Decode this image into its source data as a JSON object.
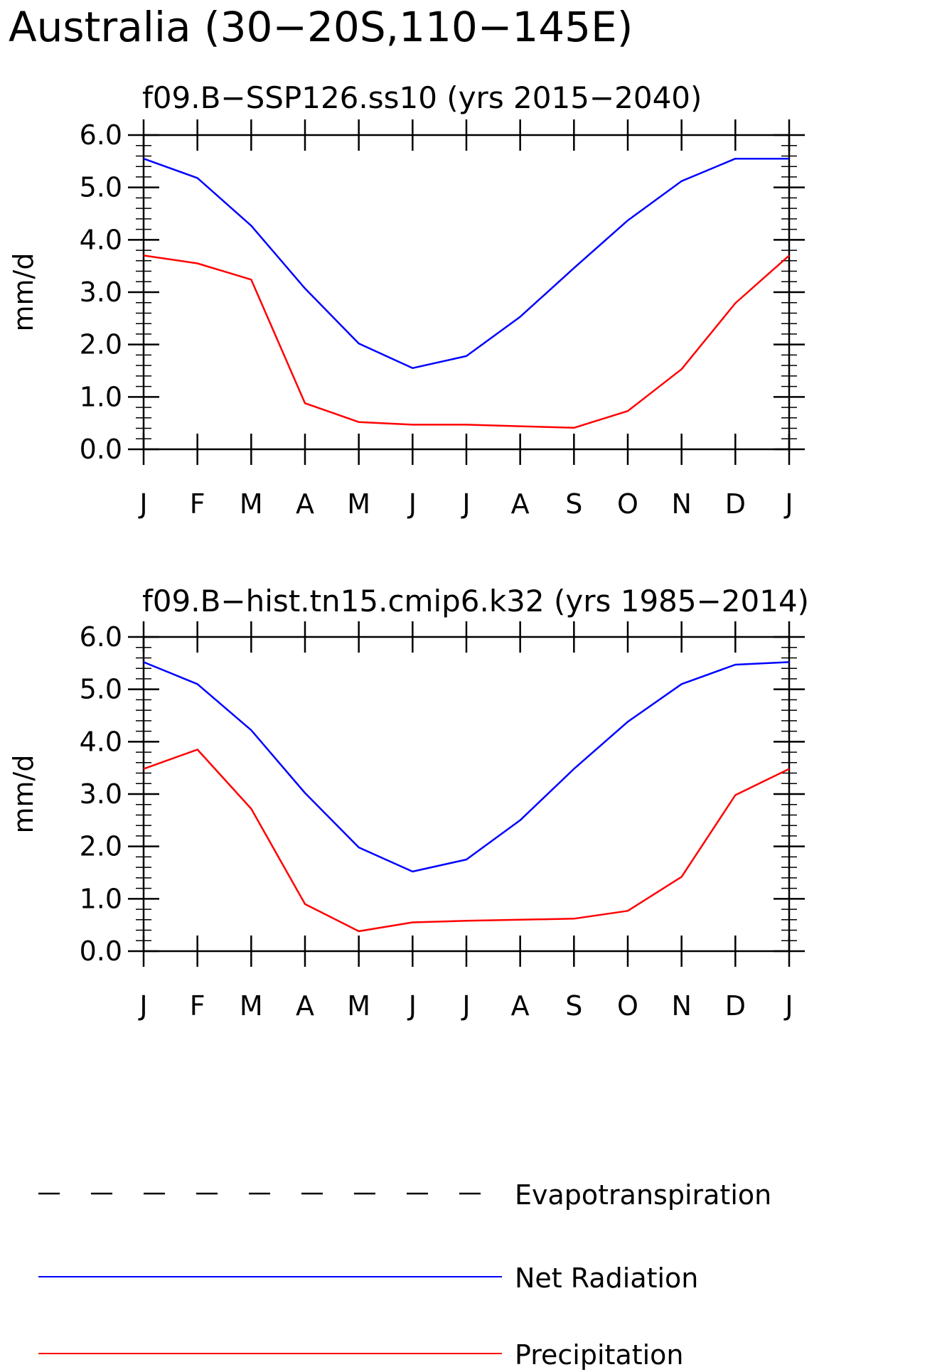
{
  "title": "Australia (30−20S,110−145E)",
  "legend": {
    "position": "bottom",
    "items": [
      {
        "label": "Evapotranspiration",
        "color": "#000000",
        "style": "dashed"
      },
      {
        "label": "Net Radiation",
        "color": "#0000ff",
        "style": "solid"
      },
      {
        "label": "Precipitation",
        "color": "#ff0000",
        "style": "solid"
      }
    ]
  },
  "chart_data": [
    {
      "type": "line",
      "title": "f09.B−SSP126.ss10 (yrs 2015−2040)",
      "xlabel": "",
      "ylabel": "mm/d",
      "categories": [
        "J",
        "F",
        "M",
        "A",
        "M",
        "J",
        "J",
        "A",
        "S",
        "O",
        "N",
        "D",
        "J"
      ],
      "ylim": [
        0,
        6
      ],
      "yticks": [
        "0.0",
        "1.0",
        "2.0",
        "3.0",
        "4.0",
        "5.0",
        "6.0"
      ],
      "grid": false,
      "series": [
        {
          "name": "Net Radiation",
          "color": "#0000ff",
          "values": [
            5.55,
            5.18,
            4.27,
            3.07,
            2.02,
            1.55,
            1.78,
            2.53,
            3.46,
            4.37,
            5.12,
            5.55,
            5.55
          ]
        },
        {
          "name": "Precipitation",
          "color": "#ff0000",
          "values": [
            3.7,
            3.55,
            3.24,
            0.88,
            0.52,
            0.47,
            0.47,
            0.44,
            0.41,
            0.73,
            1.53,
            2.79,
            3.7
          ]
        }
      ]
    },
    {
      "type": "line",
      "title": "f09.B−hist.tn15.cmip6.k32 (yrs 1985−2014)",
      "xlabel": "",
      "ylabel": "mm/d",
      "categories": [
        "J",
        "F",
        "M",
        "A",
        "M",
        "J",
        "J",
        "A",
        "S",
        "O",
        "N",
        "D",
        "J"
      ],
      "ylim": [
        0,
        6
      ],
      "yticks": [
        "0.0",
        "1.0",
        "2.0",
        "3.0",
        "4.0",
        "5.0",
        "6.0"
      ],
      "grid": false,
      "series": [
        {
          "name": "Net Radiation",
          "color": "#0000ff",
          "values": [
            5.52,
            5.1,
            4.22,
            3.02,
            1.98,
            1.52,
            1.75,
            2.5,
            3.48,
            4.38,
            5.1,
            5.47,
            5.52
          ]
        },
        {
          "name": "Precipitation",
          "color": "#ff0000",
          "values": [
            3.48,
            3.85,
            2.72,
            0.9,
            0.38,
            0.55,
            0.58,
            0.6,
            0.62,
            0.77,
            1.42,
            2.98,
            3.48
          ]
        }
      ]
    }
  ]
}
